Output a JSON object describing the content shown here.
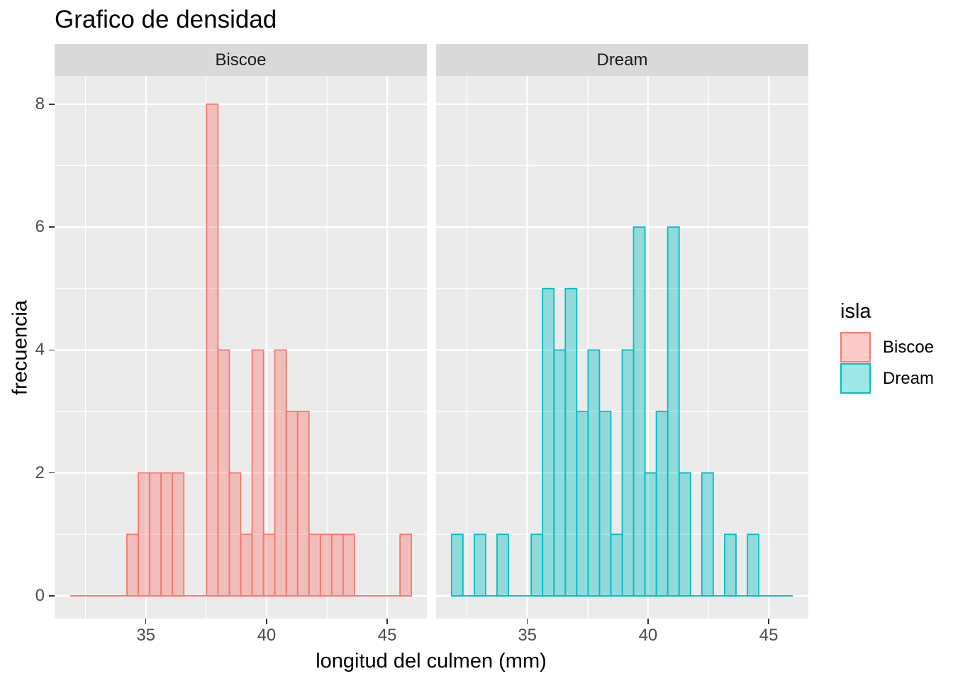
{
  "chart_data": {
    "type": "histogram",
    "title": "Grafico de densidad",
    "xlabel": "longitud del culmen (mm)",
    "ylabel": "frecuencia",
    "legend_title": "isla",
    "legend_position": "right",
    "facets": [
      {
        "label": "Biscoe",
        "color": "#F8766D",
        "counts": [
          0,
          0,
          0,
          0,
          0,
          1,
          2,
          2,
          2,
          2,
          0,
          0,
          8,
          4,
          2,
          1,
          4,
          1,
          4,
          3,
          3,
          1,
          1,
          1,
          1,
          0,
          0,
          0,
          0,
          1
        ]
      },
      {
        "label": "Dream",
        "color": "#00BFC4",
        "counts": [
          1,
          0,
          1,
          0,
          1,
          0,
          0,
          1,
          5,
          4,
          5,
          3,
          4,
          3,
          1,
          4,
          6,
          2,
          3,
          6,
          2,
          0,
          2,
          0,
          1,
          0,
          1,
          0,
          0,
          0
        ]
      }
    ],
    "bins": {
      "start": 31.86,
      "width": 0.4713,
      "n": 30,
      "x_unit": "mm"
    },
    "axes": {
      "x_ticks": [
        35,
        40,
        45
      ],
      "x_minor_gridlines": [
        32.5,
        37.5,
        42.5
      ],
      "y_ticks": [
        0,
        2,
        4,
        6,
        8
      ],
      "y_minor_gridlines": [
        1,
        3,
        5,
        7
      ],
      "x_range": [
        31.22,
        46.64
      ],
      "y_range": [
        -0.37,
        8.46
      ],
      "grid": "on"
    },
    "colors": {
      "biscoe": "#F8766D",
      "dream": "#00BFC4",
      "fill_alpha": 0.38,
      "panel_bg": "#EBEBEB",
      "strip_bg": "#D9D9D9",
      "gridline": "#FFFFFF",
      "axis_text": "#4D4D4D",
      "strip_text": "#1A1A1A",
      "tick_mark": "#333333",
      "title_text": "#000000"
    }
  }
}
